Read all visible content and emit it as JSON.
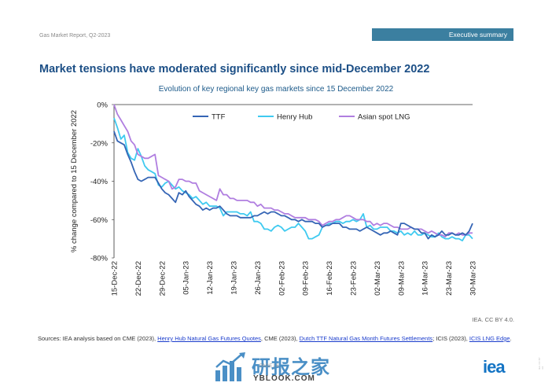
{
  "header": {
    "report_label": "Gas Market Report, Q2-2023",
    "section_label": "Executive summary"
  },
  "title": "Market tensions have moderated significantly since mid-December 2022",
  "chart_subtitle": "Evolution of key regional key gas markets since 15 December 2022",
  "credit": "IEA. CC BY 4.0.",
  "sources": {
    "prefix": "Sources: IEA analysis based on CME (2023), ",
    "link1": "Henry Hub Natural Gas Futures Quotes",
    "mid1": ", CME (2023), ",
    "link2": "Dutch TTF Natural Gas Month Futures Settlements",
    "mid2": "; ICIS (2023), ",
    "link3": "ICIS LNG Edge",
    "suffix": "."
  },
  "page_number": "PAGE | 6",
  "watermark": {
    "cn": "研报之家",
    "url": "YBLOOK.COM"
  },
  "logo": "iea",
  "side_note": "IEA. CC BY 4.0.",
  "colors": {
    "ttf": "#3565b5",
    "henry_hub": "#3fcaf0",
    "asian_lng": "#b07ee0",
    "title": "#1c4f86",
    "banner": "#3b7fa0"
  },
  "chart_data": {
    "type": "line",
    "title": "Evolution of key regional key gas markets since 15 December 2022",
    "ylabel": "% change compared to 15 December 2022",
    "xlabel": "",
    "ylim": [
      -80,
      0
    ],
    "yticks": [
      "0%",
      "-20%",
      "-40%",
      "-60%",
      "-80%"
    ],
    "yticks_values": [
      0,
      -20,
      -40,
      -60,
      -80
    ],
    "xlim_days": [
      0,
      105
    ],
    "xticks": [
      "15-Dec-22",
      "22-Dec-22",
      "29-Dec-22",
      "05-Jan-23",
      "12-Jan-23",
      "19-Jan-23",
      "26-Jan-23",
      "02-Feb-23",
      "09-Feb-23",
      "16-Feb-23",
      "23-Feb-23",
      "02-Mar-23",
      "09-Mar-23",
      "16-Mar-23",
      "23-Mar-23",
      "30-Mar-23"
    ],
    "legend_position": "top",
    "grid": false,
    "series": [
      {
        "name": "TTF",
        "x": [
          0,
          1,
          2,
          3,
          4,
          5,
          6,
          7,
          8,
          9,
          10,
          11,
          12,
          13,
          14,
          15,
          16,
          17,
          18,
          19,
          20,
          21,
          22,
          23,
          24,
          25,
          26,
          27,
          28,
          29,
          30,
          31,
          32,
          33,
          34,
          35,
          36,
          37,
          38,
          39,
          40,
          41,
          42,
          43,
          44,
          45,
          46,
          47,
          48,
          49,
          50,
          51,
          52,
          53,
          54,
          55,
          56,
          57,
          58,
          59,
          60,
          61,
          62,
          63,
          64,
          65,
          66,
          67,
          68,
          69,
          70,
          71,
          72,
          73,
          74,
          75,
          76,
          77,
          78,
          79,
          80,
          81,
          82,
          83,
          84,
          85,
          86,
          87,
          88,
          89,
          90,
          91,
          92,
          93,
          94,
          95,
          96,
          97,
          98,
          99,
          100,
          101,
          102,
          103,
          104,
          105
        ],
        "y": [
          -14,
          -19,
          -20,
          -21,
          -26,
          -30,
          -35,
          -39,
          -40,
          -39,
          -38,
          -38,
          -38,
          -41,
          -44,
          -46,
          -47,
          -49,
          -51,
          -46,
          -47,
          -45,
          -48,
          -50,
          -52,
          -53,
          -55,
          -54,
          -55,
          -54,
          -54,
          -53,
          -55,
          -57,
          -58,
          -58,
          -58,
          -59,
          -59,
          -59,
          -59,
          -58,
          -58,
          -57,
          -56,
          -57,
          -56,
          -56,
          -57,
          -58,
          -58,
          -59,
          -60,
          -60,
          -61,
          -60,
          -61,
          -61,
          -61,
          -62,
          -62,
          -64,
          -63,
          -63,
          -62,
          -62,
          -62,
          -64,
          -64,
          -65,
          -65,
          -65,
          -66,
          -65,
          -64,
          -65,
          -66,
          -67,
          -68,
          -67,
          -67,
          -66,
          -67,
          -68,
          -62,
          -62,
          -63,
          -64,
          -65,
          -65,
          -67,
          -67,
          -70,
          -68,
          -69,
          -68,
          -66,
          -68,
          -68,
          -67,
          -68,
          -68,
          -67,
          -68,
          -66,
          -62
        ]
      },
      {
        "name": "Henry Hub",
        "x": [
          0,
          1,
          2,
          3,
          4,
          5,
          6,
          7,
          8,
          9,
          10,
          11,
          12,
          13,
          14,
          15,
          16,
          17,
          18,
          19,
          20,
          21,
          22,
          23,
          24,
          25,
          26,
          27,
          28,
          29,
          30,
          31,
          32,
          33,
          34,
          35,
          36,
          37,
          38,
          39,
          40,
          41,
          42,
          43,
          44,
          45,
          46,
          47,
          48,
          49,
          50,
          51,
          52,
          53,
          54,
          55,
          56,
          57,
          58,
          59,
          60,
          61,
          62,
          63,
          64,
          65,
          66,
          67,
          68,
          69,
          70,
          71,
          72,
          73,
          74,
          75,
          76,
          77,
          78,
          79,
          80,
          81,
          82,
          83,
          84,
          85,
          86,
          87,
          88,
          89,
          90,
          91,
          92,
          93,
          94,
          95,
          96,
          97,
          98,
          99,
          100,
          101,
          102,
          103,
          104,
          105
        ],
        "y": [
          -7,
          -12,
          -18,
          -16,
          -25,
          -28,
          -29,
          -23,
          -27,
          -32,
          -34,
          -35,
          -36,
          -42,
          -43,
          -41,
          -40,
          -42,
          -44,
          -43,
          -45,
          -46,
          -47,
          -49,
          -48,
          -50,
          -52,
          -51,
          -53,
          -53,
          -53,
          -54,
          -58,
          -56,
          -56,
          -56,
          -56,
          -57,
          -57,
          -58,
          -56,
          -61,
          -61,
          -62,
          -65,
          -65,
          -66,
          -64,
          -63,
          -64,
          -66,
          -65,
          -64,
          -64,
          -62,
          -64,
          -66,
          -70,
          -70,
          -69,
          -68,
          -64,
          -63,
          -62,
          -62,
          -61,
          -61,
          -62,
          -61,
          -61,
          -60,
          -61,
          -60,
          -57,
          -64,
          -63,
          -65,
          -65,
          -64,
          -64,
          -64,
          -66,
          -66,
          -67,
          -66,
          -68,
          -67,
          -68,
          -66,
          -68,
          -68,
          -67,
          -68,
          -69,
          -69,
          -67,
          -69,
          -70,
          -70,
          -69,
          -70,
          -70,
          -71,
          -68,
          -68,
          -70
        ]
      },
      {
        "name": "Asian spot LNG",
        "x": [
          0,
          1,
          2,
          3,
          4,
          5,
          6,
          7,
          8,
          9,
          10,
          11,
          12,
          13,
          14,
          15,
          16,
          17,
          18,
          19,
          20,
          21,
          22,
          23,
          24,
          25,
          26,
          27,
          28,
          29,
          30,
          31,
          32,
          33,
          34,
          35,
          36,
          37,
          38,
          39,
          40,
          41,
          42,
          43,
          44,
          45,
          46,
          47,
          48,
          49,
          50,
          51,
          52,
          53,
          54,
          55,
          56,
          57,
          58,
          59,
          60,
          61,
          62,
          63,
          64,
          65,
          66,
          67,
          68,
          69,
          70,
          71,
          72,
          73,
          74,
          75,
          76,
          77,
          78,
          79,
          80,
          81,
          82,
          83,
          84,
          85,
          86,
          87,
          88,
          89,
          90,
          91,
          92,
          93,
          94,
          95,
          96,
          97,
          98,
          99,
          100,
          101,
          102,
          103,
          104,
          105
        ],
        "y": [
          0,
          -5,
          -8,
          -11,
          -14,
          -19,
          -21,
          -26,
          -27,
          -28,
          -28,
          -27,
          -26,
          -37,
          -38,
          -39,
          -40,
          -44,
          -43,
          -39,
          -39,
          -40,
          -40,
          -41,
          -41,
          -45,
          -46,
          -47,
          -48,
          -49,
          -50,
          -44,
          -47,
          -47,
          -49,
          -49,
          -50,
          -50,
          -50,
          -50,
          -51,
          -51,
          -53,
          -52,
          -54,
          -54,
          -54,
          -55,
          -55,
          -56,
          -57,
          -57,
          -58,
          -59,
          -59,
          -59,
          -59,
          -60,
          -60,
          -60,
          -61,
          -63,
          -62,
          -61,
          -61,
          -60,
          -60,
          -59,
          -58,
          -58,
          -59,
          -60,
          -60,
          -60,
          -61,
          -61,
          -63,
          -62,
          -63,
          -62,
          -62,
          -63,
          -64,
          -64,
          -65,
          -65,
          -65,
          -64,
          -65,
          -65,
          -65,
          -66,
          -67,
          -66,
          -67,
          -68,
          -68,
          -69,
          -67,
          -67,
          -68,
          -67,
          -68,
          -68,
          -67,
          -67
        ]
      }
    ]
  }
}
